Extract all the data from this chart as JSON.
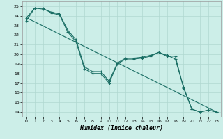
{
  "xlabel": "Humidex (Indice chaleur)",
  "bg_color": "#cceee8",
  "grid_color": "#b0d8d0",
  "line_color": "#1a6e64",
  "xlim": [
    -0.5,
    23.5
  ],
  "ylim": [
    13.5,
    25.5
  ],
  "xticks": [
    0,
    1,
    2,
    3,
    4,
    5,
    6,
    7,
    8,
    9,
    10,
    11,
    12,
    13,
    14,
    15,
    16,
    17,
    18,
    19,
    20,
    21,
    22,
    23
  ],
  "yticks": [
    14,
    15,
    16,
    17,
    18,
    19,
    20,
    21,
    22,
    23,
    24,
    25
  ],
  "line1": {
    "x": [
      0,
      1,
      2,
      3,
      4,
      5,
      6,
      7,
      8,
      9,
      10,
      11,
      12,
      13,
      14,
      15,
      16,
      17,
      18,
      19,
      20,
      21,
      22,
      23
    ],
    "y": [
      23.5,
      24.8,
      24.8,
      24.3,
      24.1,
      22.3,
      21.3,
      18.5,
      18.0,
      18.0,
      17.0,
      19.0,
      19.5,
      19.5,
      19.6,
      19.8,
      20.2,
      19.8,
      19.8,
      16.5,
      14.3,
      14.0,
      14.2,
      14.0
    ]
  },
  "line2": {
    "x": [
      0,
      1,
      2,
      3,
      4,
      5,
      6,
      7,
      8,
      9,
      10,
      11,
      12,
      13,
      14,
      15,
      16,
      17,
      18,
      19,
      20,
      21,
      22,
      23
    ],
    "y": [
      23.8,
      24.8,
      24.7,
      24.4,
      24.2,
      22.5,
      21.5,
      18.7,
      18.2,
      18.2,
      17.2,
      19.1,
      19.6,
      19.6,
      19.7,
      19.9,
      20.2,
      19.9,
      19.5,
      16.6,
      14.3,
      14.0,
      14.2,
      14.0
    ]
  },
  "line3_x": [
    0,
    23
  ],
  "line3_y": [
    23.8,
    14.0
  ]
}
